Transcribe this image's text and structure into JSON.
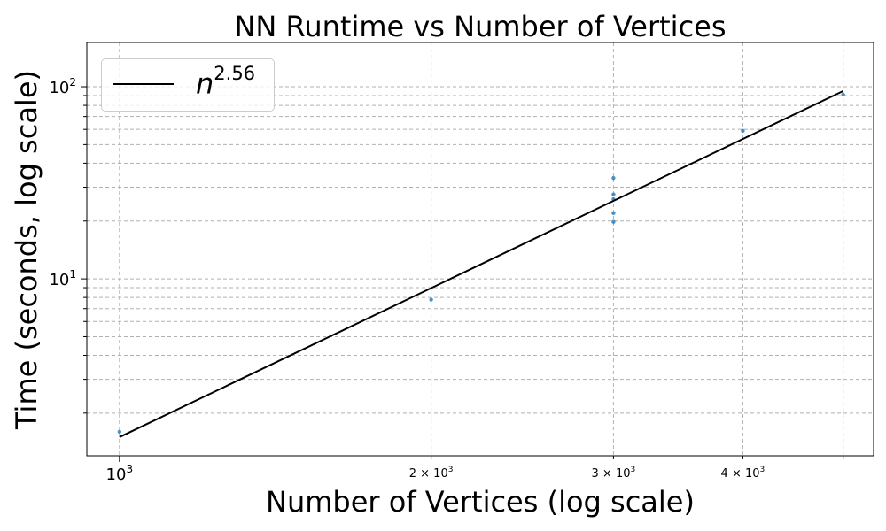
{
  "chart_data": {
    "type": "scatter",
    "title": "NN Runtime vs Number of Vertices",
    "xlabel": "Number of Vertices (log scale)",
    "ylabel": "Time (seconds, log scale)",
    "xscale": "log",
    "yscale": "log",
    "xlim": [
      930,
      5350
    ],
    "ylim": [
      1.2,
      170
    ],
    "grid": true,
    "legend_placement": "top-left",
    "x_ticks": [
      {
        "value": 1000,
        "base": "10",
        "exp": "3",
        "size": "major"
      },
      {
        "value": 2000,
        "base": "2 × 10",
        "exp": "3",
        "size": "minor"
      },
      {
        "value": 3000,
        "base": "3 × 10",
        "exp": "3",
        "size": "minor"
      },
      {
        "value": 4000,
        "base": "4 × 10",
        "exp": "3",
        "size": "minor"
      }
    ],
    "y_ticks": [
      {
        "value": 10,
        "base": "10",
        "exp": "1"
      },
      {
        "value": 100,
        "base": "10",
        "exp": "2"
      }
    ],
    "series": [
      {
        "kind": "points",
        "color": "#1f77b4",
        "points": [
          {
            "x": 1000,
            "y": 1.6
          },
          {
            "x": 2000,
            "y": 7.8
          },
          {
            "x": 3000,
            "y": 33.5
          },
          {
            "x": 3000,
            "y": 27.5
          },
          {
            "x": 3000,
            "y": 26.0
          },
          {
            "x": 3000,
            "y": 22.0
          },
          {
            "x": 3000,
            "y": 19.8
          },
          {
            "x": 4000,
            "y": 59.0
          },
          {
            "x": 5000,
            "y": 91.0
          }
        ]
      },
      {
        "kind": "line",
        "color": "#000000",
        "legend_base": "n",
        "legend_exp": "2.56",
        "points": [
          {
            "x": 1000,
            "y": 1.5
          },
          {
            "x": 5000,
            "y": 95.0
          }
        ]
      }
    ]
  }
}
